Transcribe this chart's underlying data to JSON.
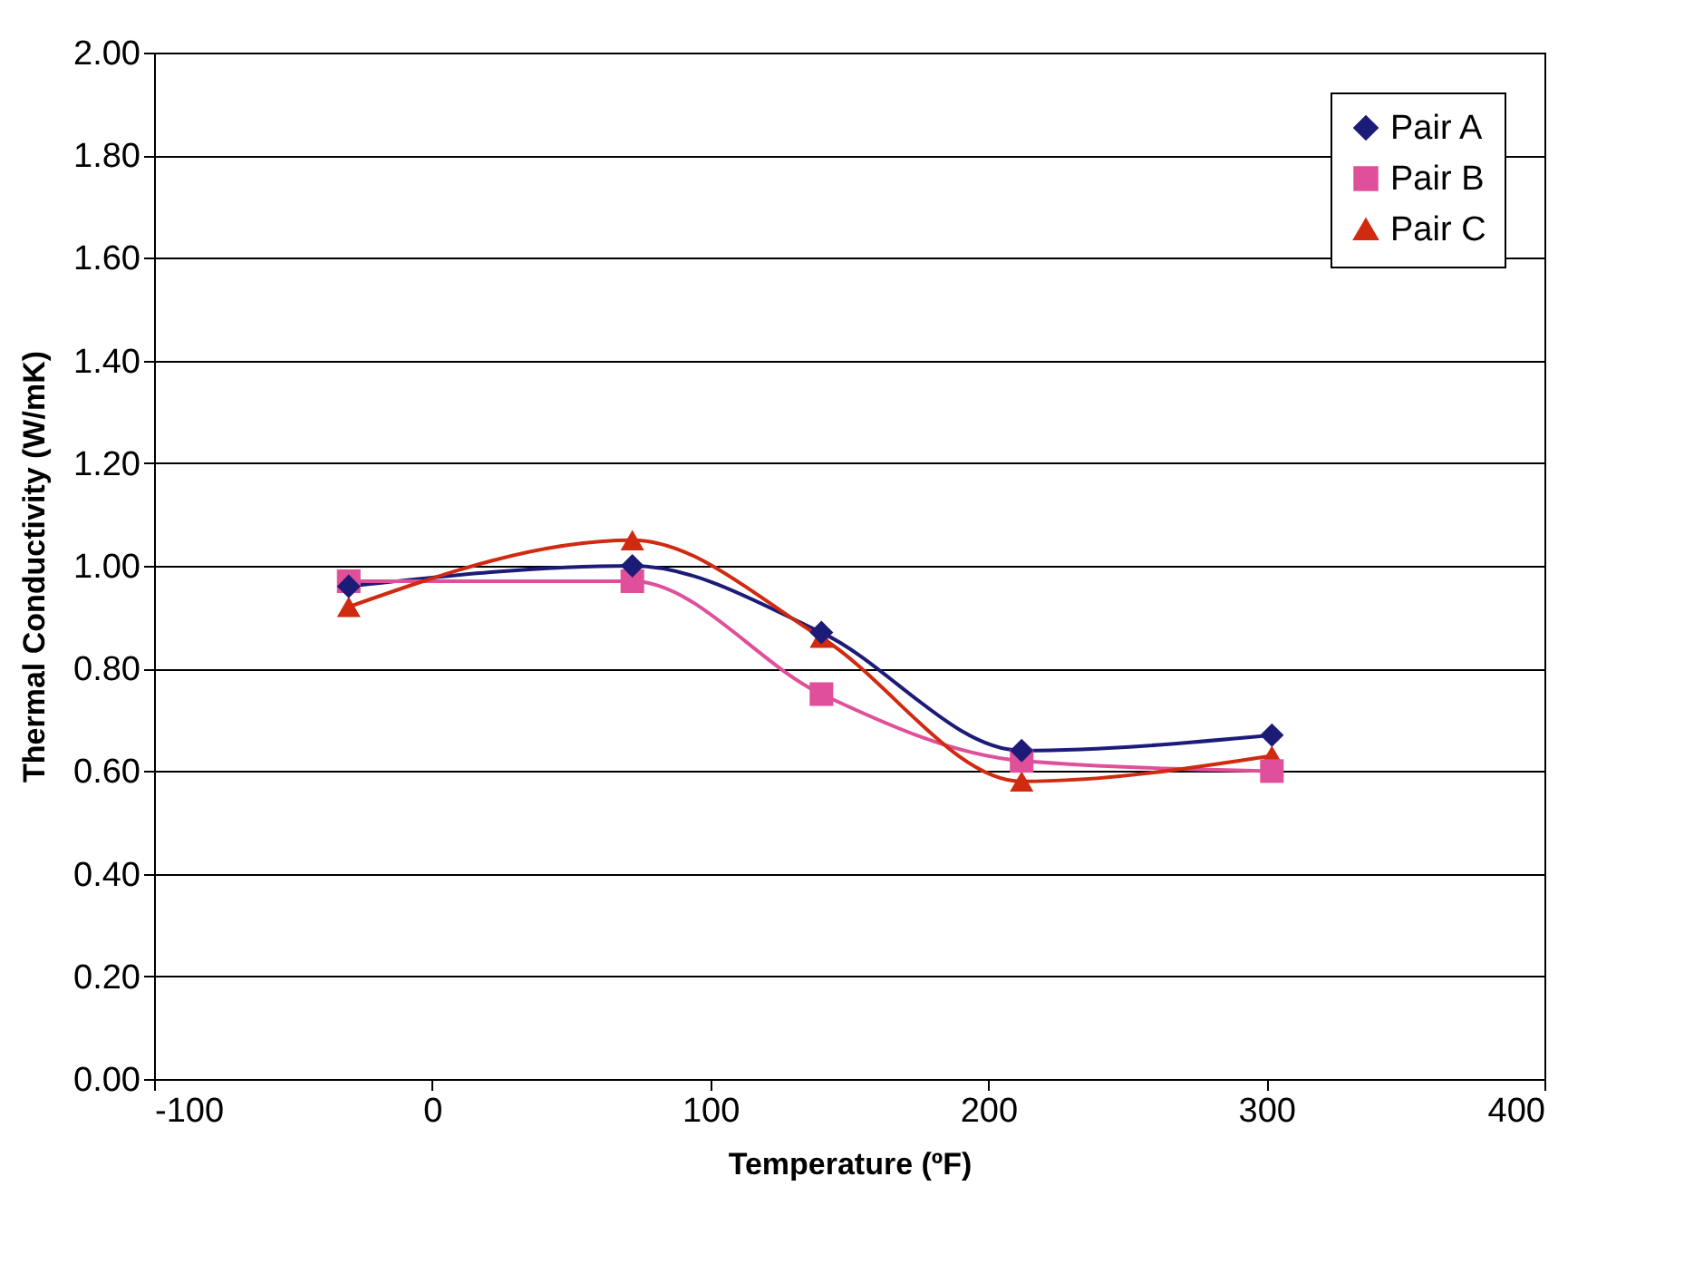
{
  "chart_data": {
    "type": "line",
    "xlabel": "Temperature (ºF)",
    "ylabel": "Thermal Conductivity (W/mK)",
    "x": [
      -30,
      72,
      140,
      212,
      302
    ],
    "series": [
      {
        "name": "Pair A",
        "color": "#1c1c78",
        "marker": "diamond",
        "values": [
          0.96,
          1.0,
          0.87,
          0.64,
          0.67
        ]
      },
      {
        "name": "Pair B",
        "color": "#e0509a",
        "marker": "square",
        "values": [
          0.97,
          0.97,
          0.75,
          0.62,
          0.6
        ]
      },
      {
        "name": "Pair C",
        "color": "#d02a10",
        "marker": "triangle",
        "values": [
          0.92,
          1.05,
          0.86,
          0.58,
          0.63
        ]
      }
    ],
    "xlim": [
      -100,
      400
    ],
    "xticks": [
      -100,
      0,
      100,
      200,
      300,
      400
    ],
    "ylim": [
      0,
      2
    ],
    "yticks": [
      {
        "value": 0,
        "label": "0.00"
      },
      {
        "value": 0.2,
        "label": "0.20"
      },
      {
        "value": 0.4,
        "label": "0.40"
      },
      {
        "value": 0.6,
        "label": "0.60"
      },
      {
        "value": 0.8,
        "label": "0.80"
      },
      {
        "value": 1.0,
        "label": "1.00"
      },
      {
        "value": 1.2,
        "label": "1.20"
      },
      {
        "value": 1.4,
        "label": "1.40"
      },
      {
        "value": 1.6,
        "label": "1.60"
      },
      {
        "value": 1.8,
        "label": "1.80"
      },
      {
        "value": 2.0,
        "label": "2.00"
      }
    ],
    "grid": "y",
    "legend": "top right",
    "line_style": "solid"
  }
}
